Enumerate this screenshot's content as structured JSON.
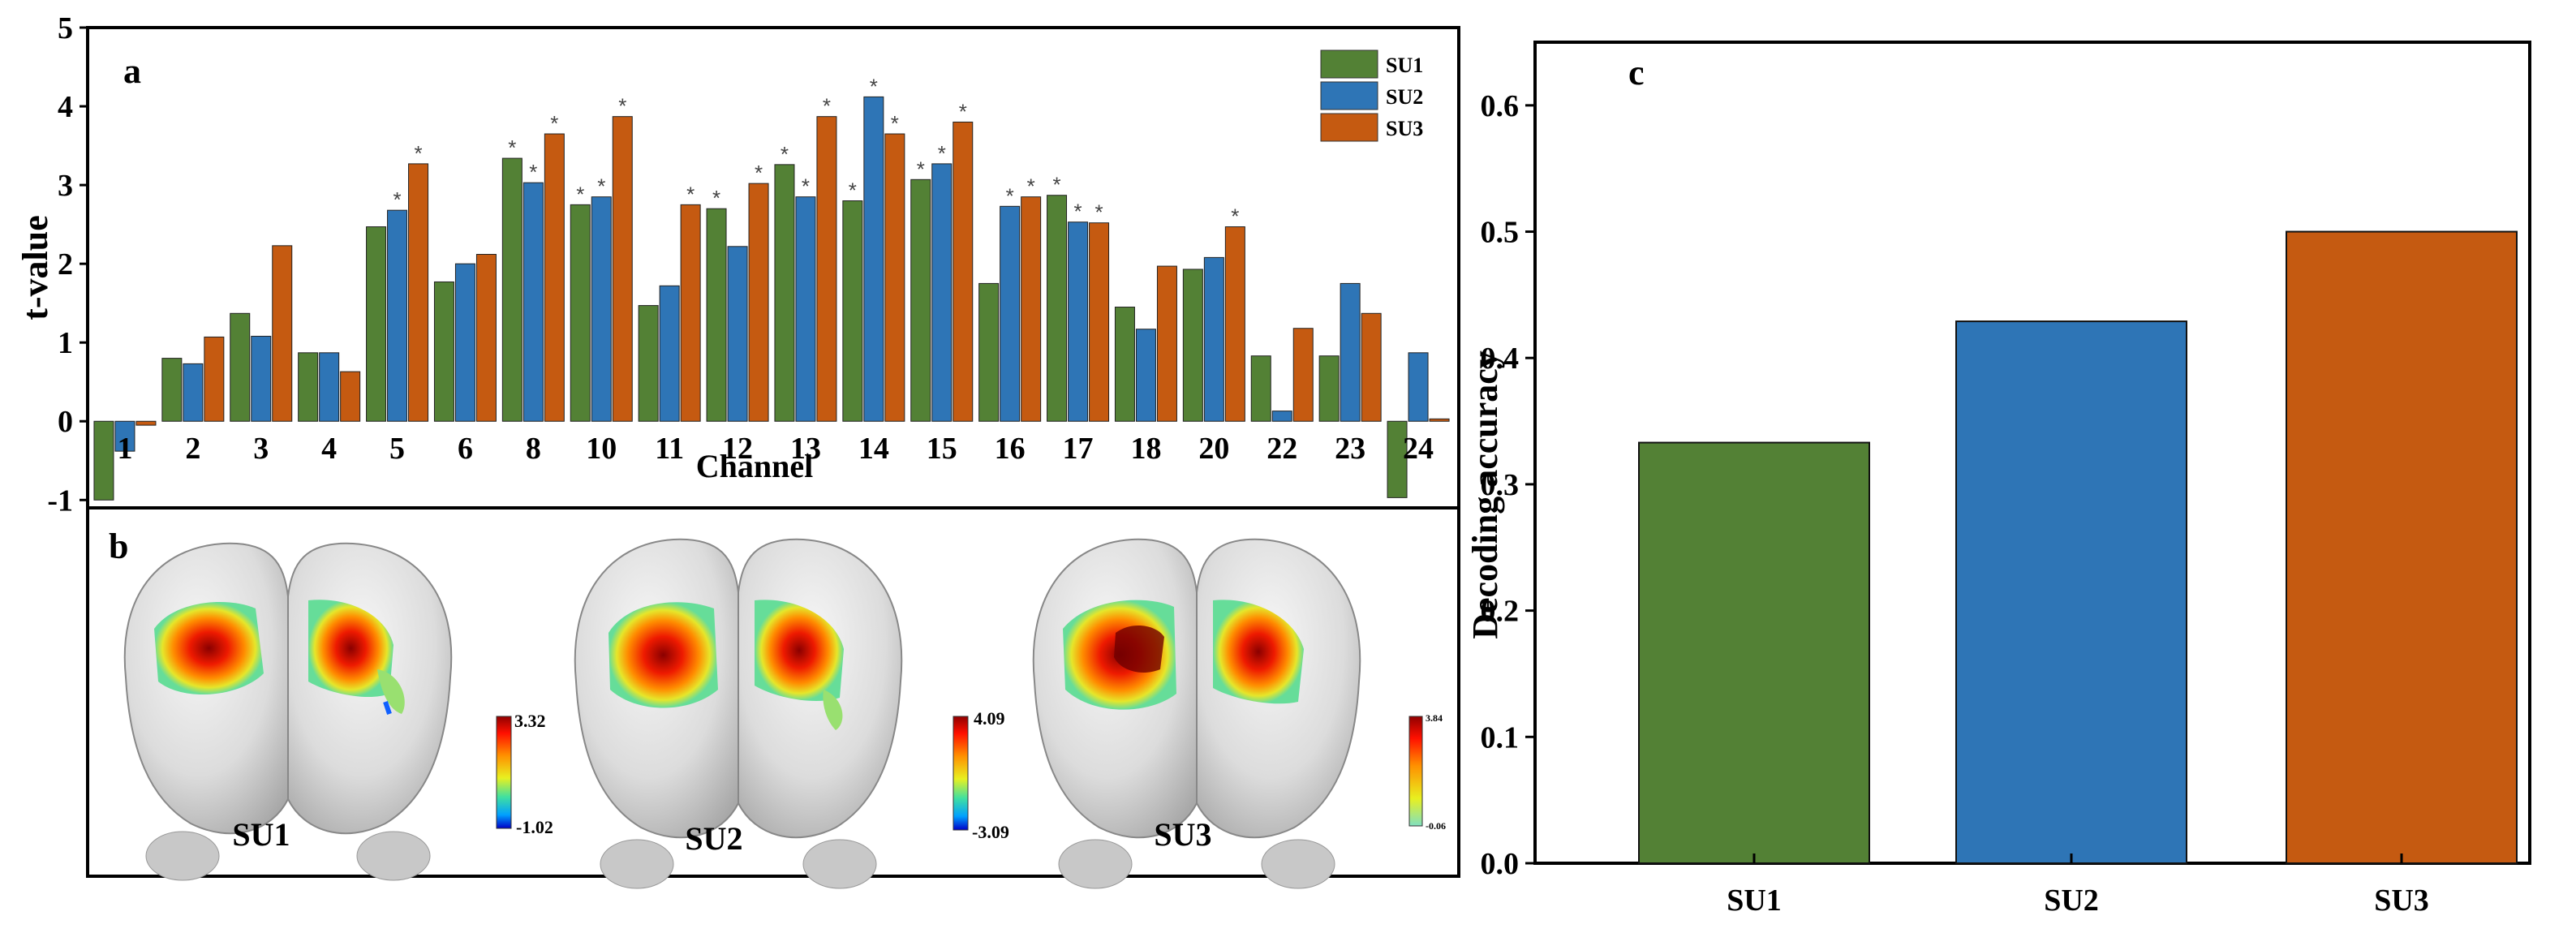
{
  "colors": {
    "su1": "#538135",
    "su2": "#2e75b6",
    "su3": "#c55a11"
  },
  "panel_a": {
    "label": "a",
    "xlabel": "Channel",
    "ylabel": "t-value",
    "y_ticks": [
      "-1",
      "0",
      "1",
      "2",
      "3",
      "4",
      "5"
    ],
    "legend": [
      "SU1",
      "SU2",
      "SU3"
    ],
    "significance_marker": "*"
  },
  "panel_b": {
    "label": "b",
    "maps": [
      {
        "name": "SU1",
        "scale_max": "3.32",
        "scale_min": "-1.02"
      },
      {
        "name": "SU2",
        "scale_max": "4.09",
        "scale_min": "-3.09"
      },
      {
        "name": "SU3",
        "scale_max": "3.84",
        "scale_min": "-0.06"
      }
    ]
  },
  "panel_c": {
    "label": "c",
    "ylabel": "Decoding accuracy",
    "y_ticks": [
      "0.0",
      "0.1",
      "0.2",
      "0.3",
      "0.4",
      "0.5",
      "0.6"
    ]
  },
  "chart_data": [
    {
      "type": "bar",
      "title": "",
      "xlabel": "Channel",
      "ylabel": "t-value",
      "ylim": [
        -1,
        5
      ],
      "categories": [
        "1",
        "2",
        "3",
        "4",
        "5",
        "6",
        "8",
        "10",
        "11",
        "12",
        "13",
        "14",
        "15",
        "16",
        "17",
        "18",
        "20",
        "22",
        "23",
        "24"
      ],
      "series": [
        {
          "name": "SU1",
          "values": [
            -1.0,
            0.8,
            1.37,
            0.87,
            2.47,
            1.77,
            3.34,
            2.75,
            1.47,
            2.7,
            3.26,
            2.8,
            3.07,
            1.75,
            2.87,
            1.45,
            1.93,
            0.83,
            0.83,
            -0.97
          ],
          "significant": [
            false,
            false,
            false,
            false,
            false,
            false,
            true,
            true,
            false,
            true,
            true,
            true,
            true,
            false,
            true,
            false,
            false,
            false,
            false,
            false
          ]
        },
        {
          "name": "SU2",
          "values": [
            -0.38,
            0.73,
            1.08,
            0.87,
            2.68,
            2.0,
            3.03,
            2.85,
            1.72,
            2.22,
            2.85,
            4.12,
            3.27,
            2.73,
            2.53,
            1.17,
            2.08,
            0.13,
            1.75,
            0.87
          ],
          "significant": [
            false,
            false,
            false,
            false,
            true,
            false,
            true,
            true,
            false,
            false,
            true,
            true,
            true,
            true,
            true,
            false,
            false,
            false,
            false,
            false
          ]
        },
        {
          "name": "SU3",
          "values": [
            -0.05,
            1.07,
            2.23,
            0.63,
            3.27,
            2.12,
            3.65,
            3.87,
            2.75,
            3.02,
            3.87,
            3.65,
            3.8,
            2.85,
            2.52,
            1.97,
            2.47,
            1.18,
            1.37,
            0.03
          ],
          "significant": [
            false,
            false,
            false,
            false,
            true,
            false,
            true,
            true,
            true,
            true,
            true,
            true,
            true,
            true,
            true,
            false,
            true,
            false,
            false,
            false
          ]
        }
      ],
      "legend": "top-right"
    },
    {
      "type": "bar",
      "title": "",
      "xlabel": "",
      "ylabel": "Decoding accuracy",
      "ylim": [
        0,
        0.65
      ],
      "categories": [
        "SU1",
        "SU2",
        "SU3"
      ],
      "values": [
        0.333,
        0.429,
        0.5
      ]
    }
  ]
}
